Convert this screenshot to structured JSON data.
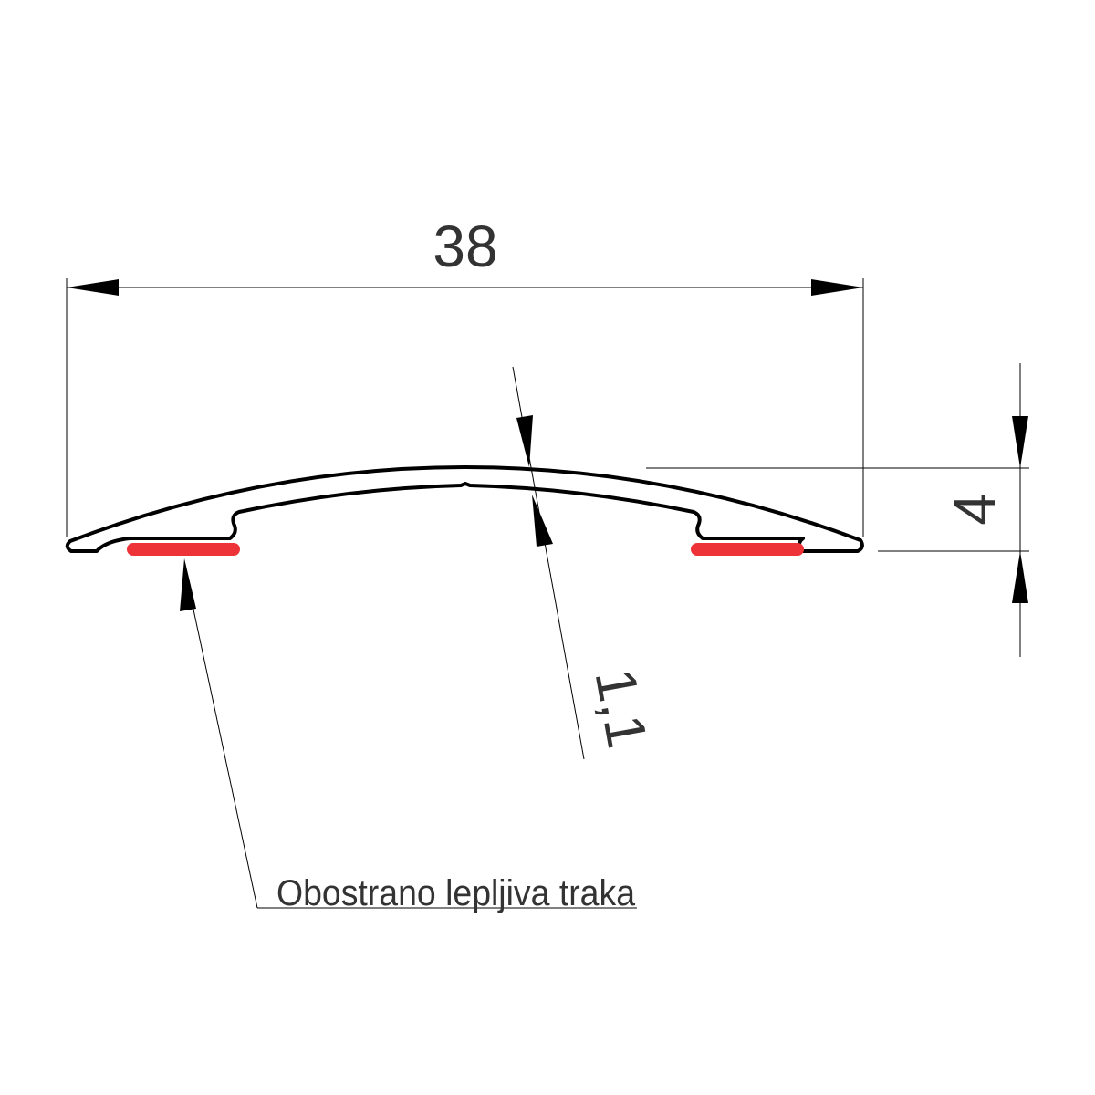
{
  "dimensions": {
    "width": "38",
    "height": "4",
    "thickness": "1,1"
  },
  "callout": {
    "label": "Obostrano lepljiva traka"
  },
  "colors": {
    "adhesive_tape": "#ee3338",
    "line": "#000000",
    "text": "#333333"
  }
}
